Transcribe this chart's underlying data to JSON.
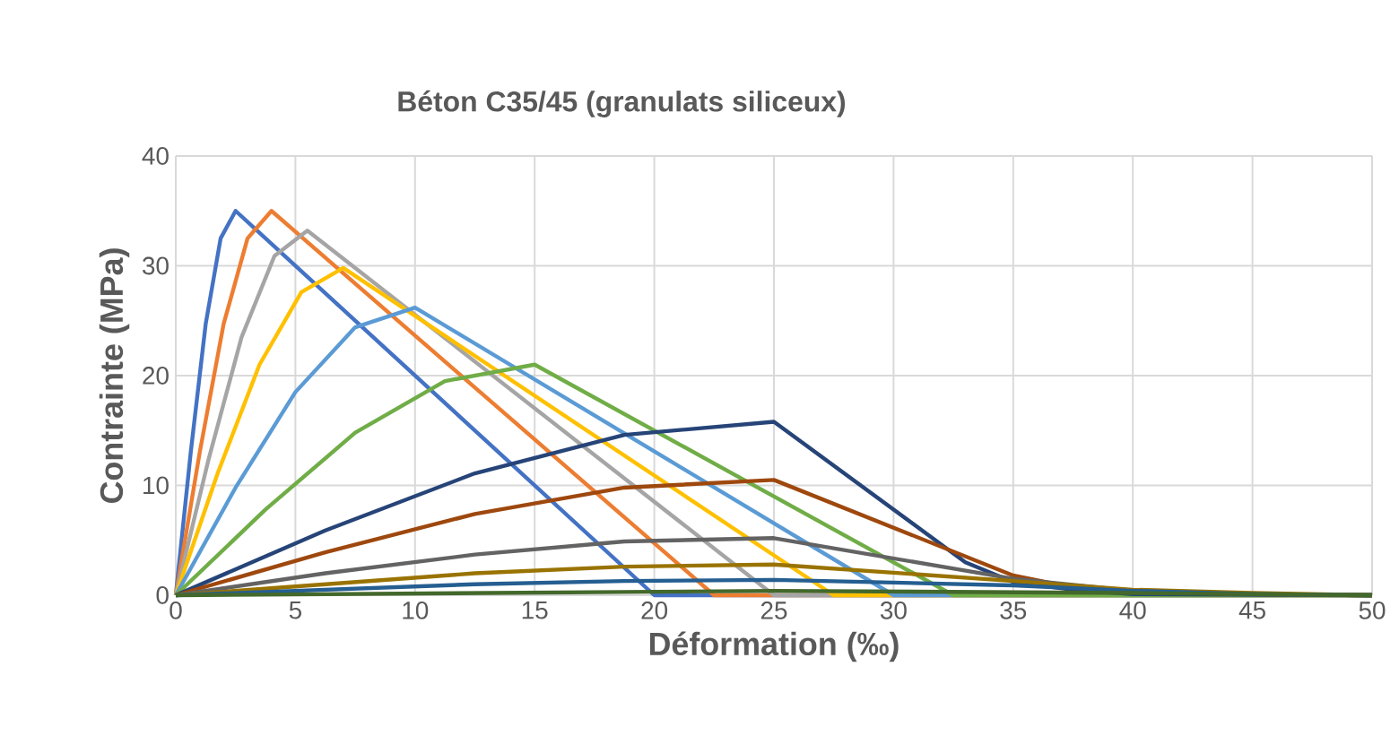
{
  "chart_data": {
    "type": "line",
    "title": "Béton C35/45 (granulats siliceux)",
    "xlabel": "Déformation (‰)",
    "ylabel": "Contrainte (MPa)",
    "xlim": [
      0,
      50
    ],
    "ylim": [
      0,
      40
    ],
    "xticks": [
      0,
      5,
      10,
      15,
      20,
      25,
      30,
      35,
      40,
      45,
      50
    ],
    "yticks": [
      0,
      10,
      20,
      30,
      40
    ],
    "grid": true,
    "marker": "none",
    "line_style": "solid",
    "series": [
      {
        "color": "#4472c4",
        "x": [
          0,
          0.625,
          1.25,
          1.875,
          2.5,
          20,
          50
        ],
        "values": [
          0,
          13.0,
          24.7,
          32.5,
          35,
          0,
          0
        ]
      },
      {
        "color": "#ed7d31",
        "x": [
          0,
          1,
          2,
          3,
          4,
          22.5,
          50
        ],
        "values": [
          0,
          13.0,
          24.7,
          32.5,
          35,
          0,
          0
        ]
      },
      {
        "color": "#a5a5a5",
        "x": [
          0,
          1.375,
          2.75,
          4.125,
          5.5,
          25,
          50
        ],
        "values": [
          0,
          12.4,
          23.5,
          30.9,
          33.2,
          0,
          0
        ]
      },
      {
        "color": "#ffc000",
        "x": [
          0,
          1.75,
          3.5,
          5.25,
          7,
          27.5,
          50
        ],
        "values": [
          0,
          11.1,
          21.0,
          27.6,
          29.8,
          0,
          0
        ]
      },
      {
        "color": "#5b9bd5",
        "x": [
          0,
          2.5,
          5,
          7.5,
          10,
          30,
          50
        ],
        "values": [
          0,
          9.8,
          18.5,
          24.4,
          26.2,
          0,
          0
        ]
      },
      {
        "color": "#70ad47",
        "x": [
          0,
          3.75,
          7.5,
          11.25,
          15,
          32.5,
          50
        ],
        "values": [
          0,
          7.8,
          14.8,
          19.5,
          21,
          0,
          0
        ]
      },
      {
        "color": "#264478",
        "x": [
          0,
          6.25,
          12.5,
          18.75,
          25,
          33,
          35,
          37.5,
          40,
          50
        ],
        "values": [
          0,
          5.9,
          11.1,
          14.6,
          15.8,
          3,
          1.2,
          0.5,
          0.1,
          0
        ]
      },
      {
        "color": "#9e480e",
        "x": [
          0,
          6.25,
          12.5,
          18.75,
          25,
          35,
          37.5,
          40,
          45,
          50
        ],
        "values": [
          0,
          3.9,
          7.4,
          9.8,
          10.5,
          1.8,
          0.7,
          0.3,
          0.1,
          0
        ]
      },
      {
        "color": "#636363",
        "x": [
          0,
          6.25,
          12.5,
          18.75,
          25,
          35,
          40,
          45,
          50
        ],
        "values": [
          0,
          2.0,
          3.7,
          4.9,
          5.2,
          1.5,
          0.4,
          0.1,
          0
        ]
      },
      {
        "color": "#997300",
        "x": [
          0,
          6.25,
          12.5,
          18.75,
          25,
          35,
          40,
          45,
          50
        ],
        "values": [
          0,
          1.0,
          2.0,
          2.6,
          2.8,
          1.3,
          0.5,
          0.2,
          0
        ]
      },
      {
        "color": "#255e91",
        "x": [
          0,
          6.25,
          12.5,
          18.75,
          25,
          35,
          40,
          45,
          50
        ],
        "values": [
          0,
          0.5,
          1.0,
          1.3,
          1.4,
          0.9,
          0.4,
          0.1,
          0
        ]
      },
      {
        "color": "#43682b",
        "x": [
          0,
          6.25,
          12.5,
          18.75,
          25,
          40,
          50
        ],
        "values": [
          0,
          0.1,
          0.2,
          0.3,
          0.4,
          0.2,
          0
        ]
      }
    ]
  }
}
